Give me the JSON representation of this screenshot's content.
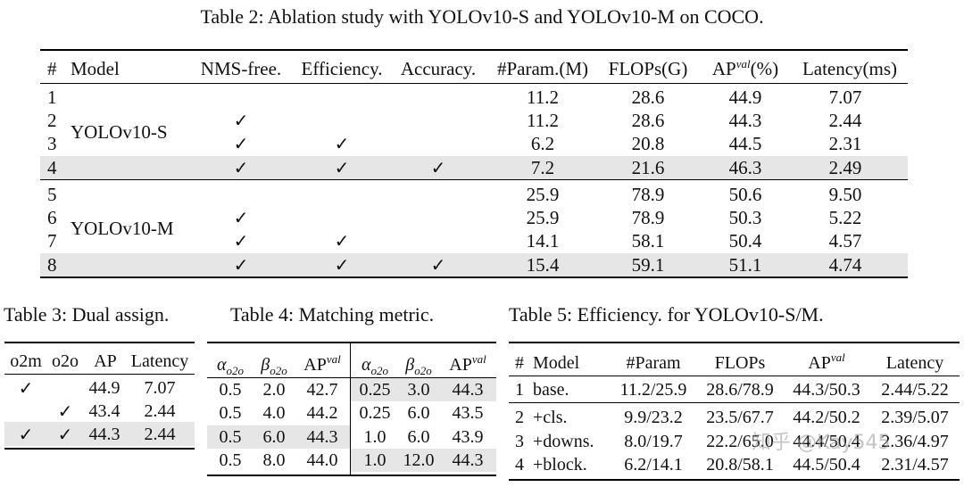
{
  "table2": {
    "caption": "Table 2: Ablation study with YOLOv10-S and YOLOv10-M on COCO.",
    "headers": {
      "idx": "#",
      "model": "Model",
      "nms_free": "NMS-free.",
      "efficiency": "Efficiency.",
      "accuracy": "Accuracy.",
      "params": "#Param.(M)",
      "flops": "FLOPs(G)",
      "ap": "AP",
      "ap_sup": "val",
      "ap_suffix": "(%)",
      "latency": "Latency(ms)"
    },
    "groups": [
      {
        "model": "YOLOv10-S",
        "rows": [
          {
            "idx": "1",
            "nms": "",
            "eff": "",
            "acc": "",
            "params": "11.2",
            "flops": "28.6",
            "ap": "44.9",
            "lat": "7.07"
          },
          {
            "idx": "2",
            "nms": "✓",
            "eff": "",
            "acc": "",
            "params": "11.2",
            "flops": "28.6",
            "ap": "44.3",
            "lat": "2.44"
          },
          {
            "idx": "3",
            "nms": "✓",
            "eff": "✓",
            "acc": "",
            "params": "6.2",
            "flops": "20.8",
            "ap": "44.5",
            "lat": "2.31"
          },
          {
            "idx": "4",
            "nms": "✓",
            "eff": "✓",
            "acc": "✓",
            "params": "7.2",
            "flops": "21.6",
            "ap": "46.3",
            "lat": "2.49"
          }
        ]
      },
      {
        "model": "YOLOv10-M",
        "rows": [
          {
            "idx": "5",
            "nms": "",
            "eff": "",
            "acc": "",
            "params": "25.9",
            "flops": "78.9",
            "ap": "50.6",
            "lat": "9.50"
          },
          {
            "idx": "6",
            "nms": "✓",
            "eff": "",
            "acc": "",
            "params": "25.9",
            "flops": "78.9",
            "ap": "50.3",
            "lat": "5.22"
          },
          {
            "idx": "7",
            "nms": "✓",
            "eff": "✓",
            "acc": "",
            "params": "14.1",
            "flops": "58.1",
            "ap": "50.4",
            "lat": "4.57"
          },
          {
            "idx": "8",
            "nms": "✓",
            "eff": "✓",
            "acc": "✓",
            "params": "15.4",
            "flops": "59.1",
            "ap": "51.1",
            "lat": "4.74"
          }
        ]
      }
    ]
  },
  "table3": {
    "caption": "Table 3: Dual assign.",
    "headers": {
      "o2m": "o2m",
      "o2o": "o2o",
      "ap": "AP",
      "latency": "Latency"
    },
    "rows": [
      {
        "o2m": "✓",
        "o2o": "",
        "ap": "44.9",
        "lat": "7.07"
      },
      {
        "o2m": "",
        "o2o": "✓",
        "ap": "43.4",
        "lat": "2.44"
      },
      {
        "o2m": "✓",
        "o2o": "✓",
        "ap": "44.3",
        "lat": "2.44"
      }
    ]
  },
  "table4": {
    "caption": "Table 4: Matching metric.",
    "headers": {
      "alpha": "α",
      "beta": "β",
      "sub": "o2o",
      "ap": "AP",
      "ap_sup": "val"
    },
    "rows": [
      {
        "a1": "0.5",
        "b1": "2.0",
        "ap1": "42.7",
        "a2": "0.25",
        "b2": "3.0",
        "ap2": "44.3"
      },
      {
        "a1": "0.5",
        "b1": "4.0",
        "ap1": "44.2",
        "a2": "0.25",
        "b2": "6.0",
        "ap2": "43.5"
      },
      {
        "a1": "0.5",
        "b1": "6.0",
        "ap1": "44.3",
        "a2": "1.0",
        "b2": "6.0",
        "ap2": "43.9"
      },
      {
        "a1": "0.5",
        "b1": "8.0",
        "ap1": "44.0",
        "a2": "1.0",
        "b2": "12.0",
        "ap2": "44.3"
      }
    ]
  },
  "table5": {
    "caption": "Table 5: Efficiency. for YOLOv10-S/M.",
    "headers": {
      "idx": "#",
      "model": "Model",
      "params": "#Param",
      "flops": "FLOPs",
      "ap": "AP",
      "ap_sup": "val",
      "latency": "Latency"
    },
    "rows": [
      {
        "idx": "1",
        "model": "base.",
        "params": "11.2/25.9",
        "flops": "28.6/78.9",
        "ap": "44.3/50.3",
        "lat": "2.44/5.22"
      },
      {
        "idx": "2",
        "model": "+cls.",
        "params": "9.9/23.2",
        "flops": "23.5/67.7",
        "ap": "44.2/50.2",
        "lat": "2.39/5.07"
      },
      {
        "idx": "3",
        "model": "+downs.",
        "params": "8.0/19.7",
        "flops": "22.2/65.0",
        "ap": "44.4/50.4",
        "lat": "2.36/4.97"
      },
      {
        "idx": "4",
        "model": "+block.",
        "params": "6.2/14.1",
        "flops": "20.8/58.1",
        "ap": "44.5/50.4",
        "lat": "2.31/4.57"
      }
    ]
  },
  "watermark": "知乎 @Kay545"
}
